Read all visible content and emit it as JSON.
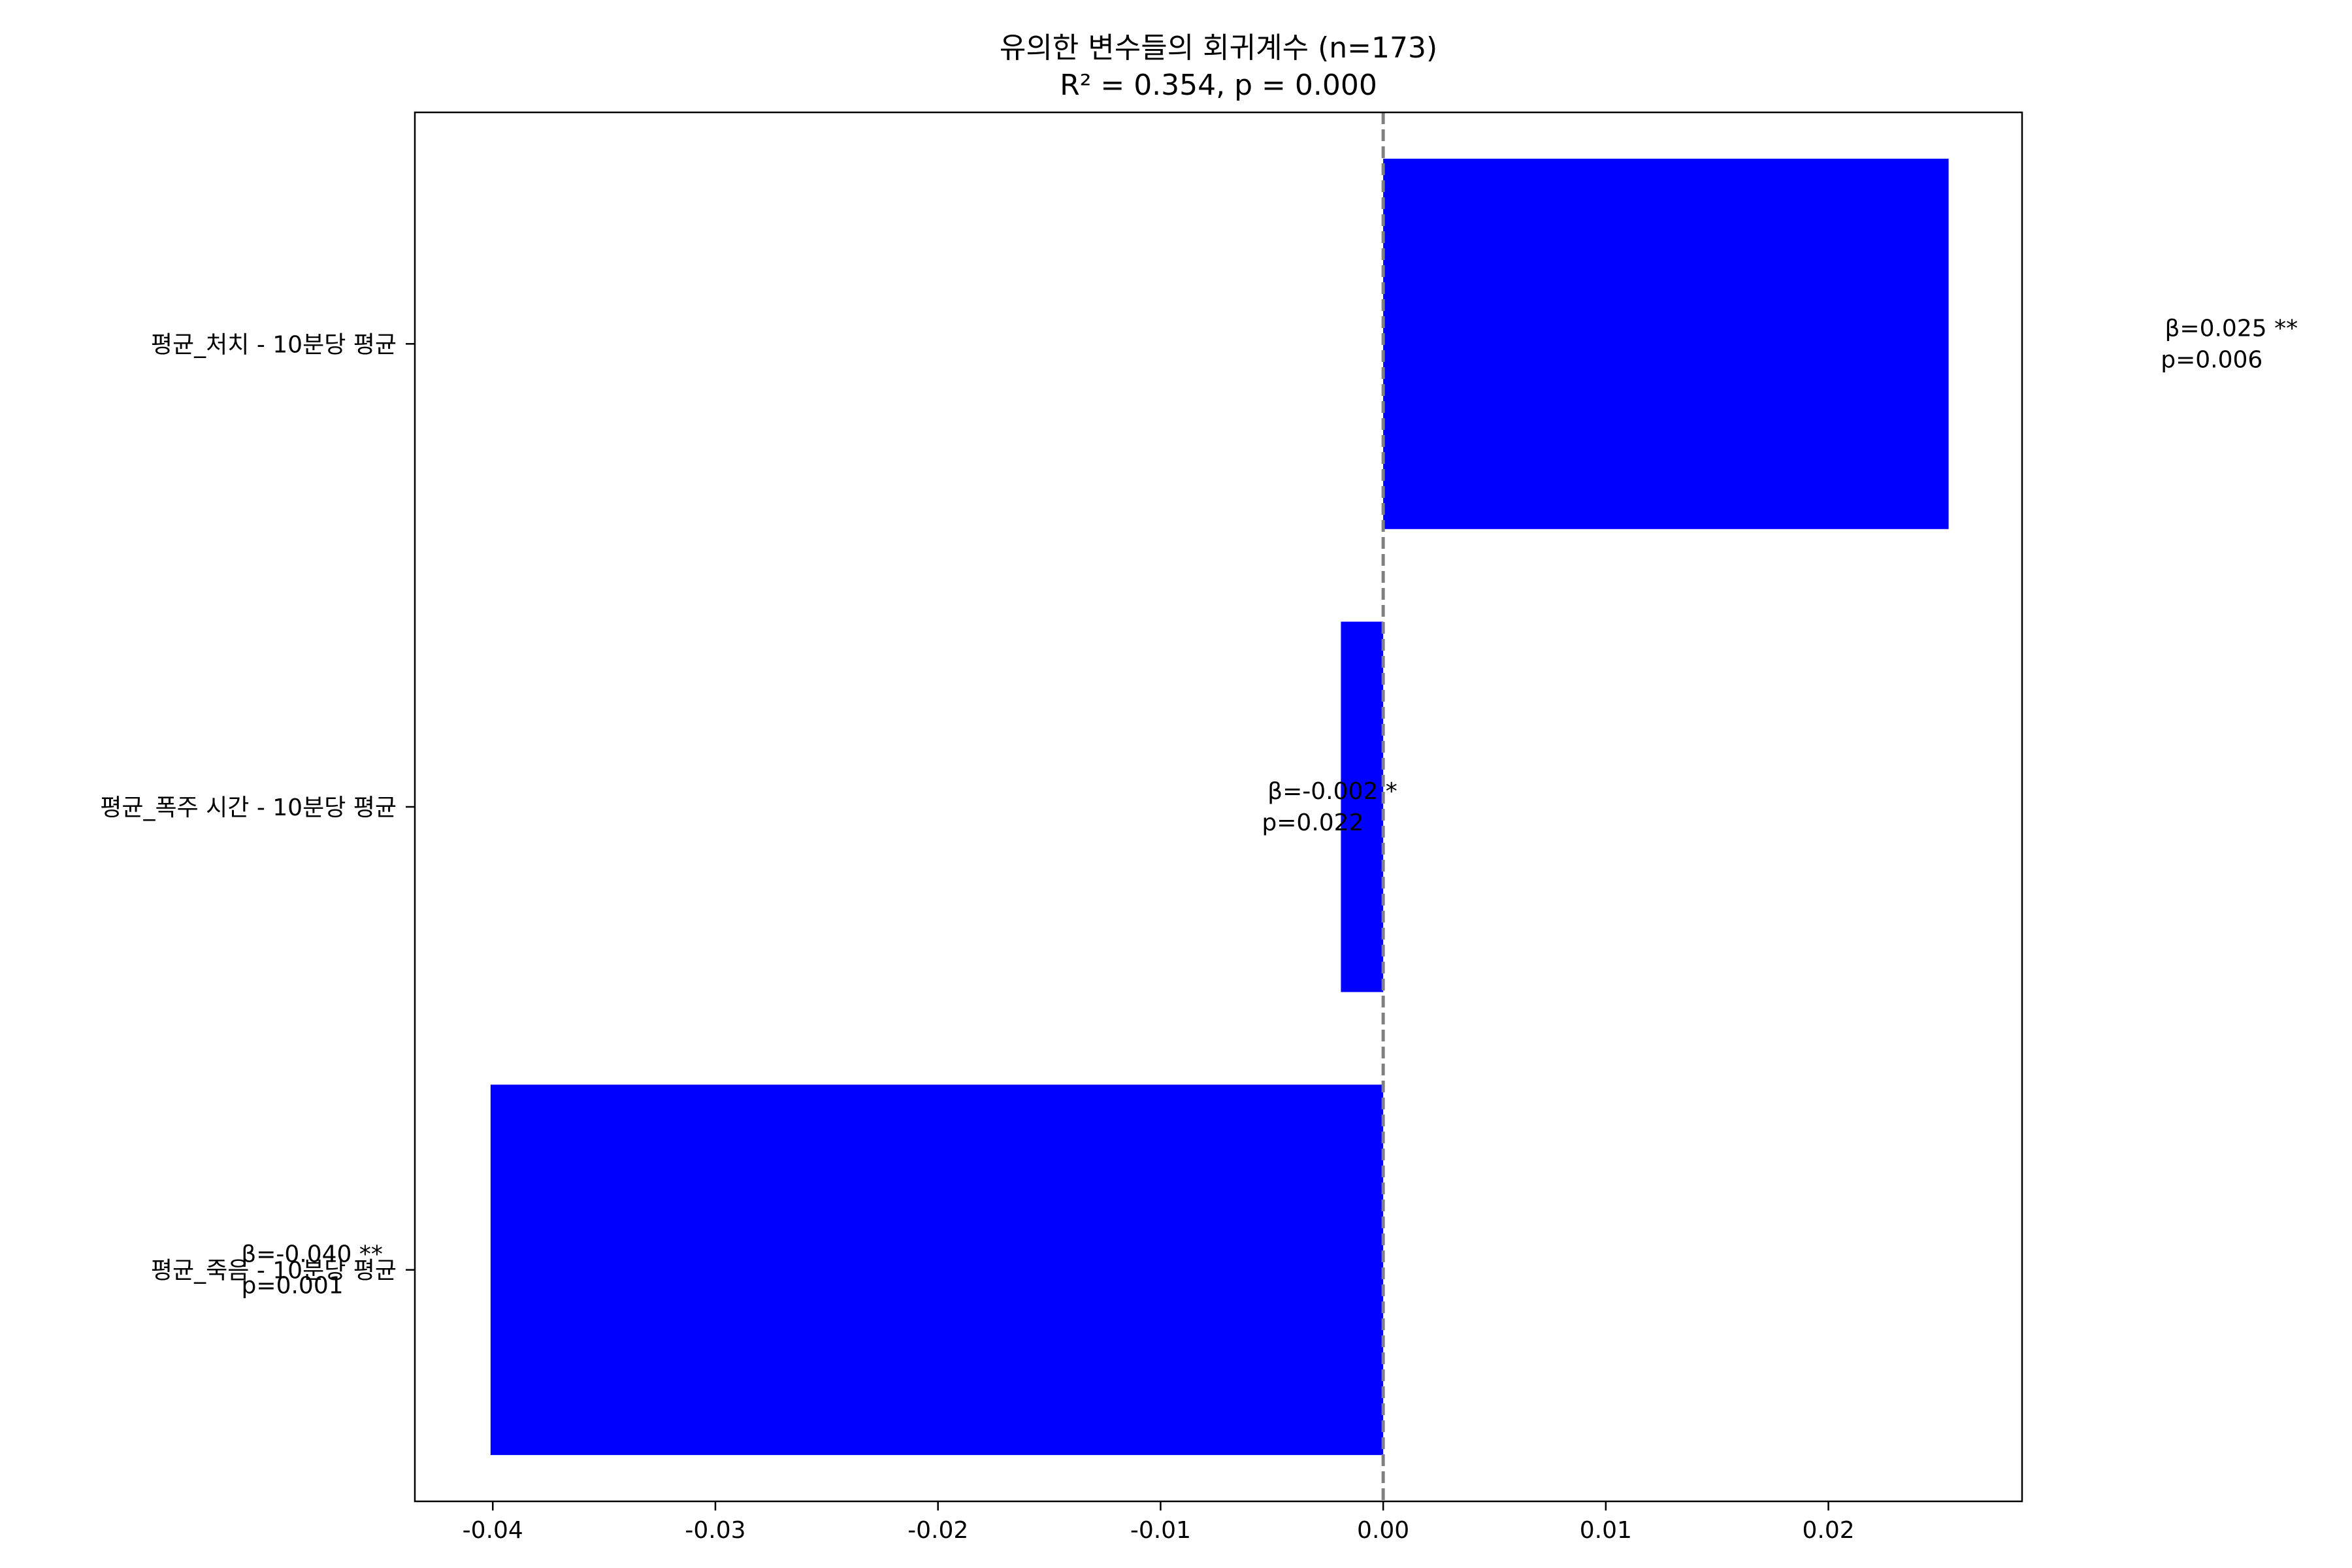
{
  "chart_data": {
    "type": "bar",
    "orientation": "horizontal",
    "title": "유의한 변수들의 회귀계수 (n=173)",
    "subtitle": "R² = 0.354, p = 0.000",
    "xlabel": "",
    "ylabel": "",
    "xlim": [
      -0.0435,
      0.0287
    ],
    "x_ticks": [
      -0.04,
      -0.03,
      -0.02,
      -0.01,
      0.0,
      0.01,
      0.02
    ],
    "x_tick_labels": [
      "-0.04",
      "-0.03",
      "-0.02",
      "-0.01",
      "0.00",
      "0.01",
      "0.02"
    ],
    "categories": [
      "평균_처치 - 10분당 평균",
      "평균_폭주 시간 - 10분당 평균",
      "평균_죽음 - 10분당 평균"
    ],
    "values": [
      0.0254,
      -0.0019,
      -0.0401
    ],
    "annotations": [
      {
        "beta": "β=0.025 **",
        "p": "p=0.006"
      },
      {
        "beta": "β=-0.002 *",
        "p": "p=0.022"
      },
      {
        "beta": "β=-0.040 **",
        "p": "p=0.001"
      }
    ],
    "bar_color": "#0000ff",
    "zero_line": {
      "value": 0.0,
      "style": "dashed",
      "color": "#808080"
    },
    "grid": false,
    "legend": "none"
  }
}
